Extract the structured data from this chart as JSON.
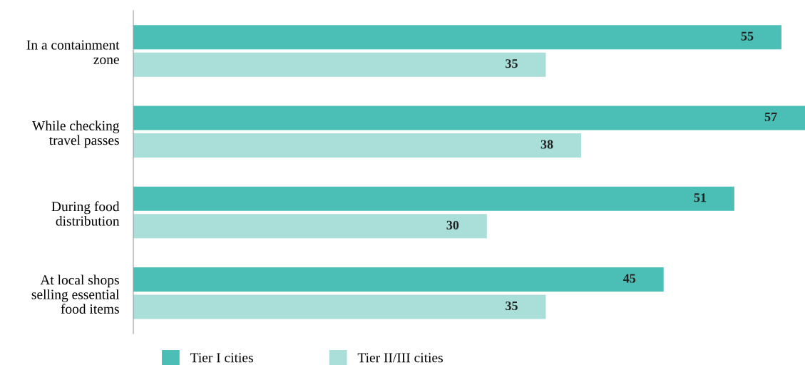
{
  "chart_data": {
    "type": "bar",
    "orientation": "horizontal",
    "categories": [
      "In a containment\nzone",
      "While checking\ntravel passes",
      "During food\ndistribution",
      "At local shops\nselling essential\nfood items"
    ],
    "series": [
      {
        "name": "Tier I cities",
        "color": "#4bbfb5",
        "values": [
          55,
          57,
          51,
          45
        ]
      },
      {
        "name": "Tier II/III cities",
        "color": "#aaded8",
        "values": [
          35,
          38,
          30,
          35
        ]
      }
    ],
    "xlim": [
      0,
      57
    ],
    "data_labels": true,
    "tick_labels": "y",
    "legend": "bottom",
    "grid": false
  }
}
